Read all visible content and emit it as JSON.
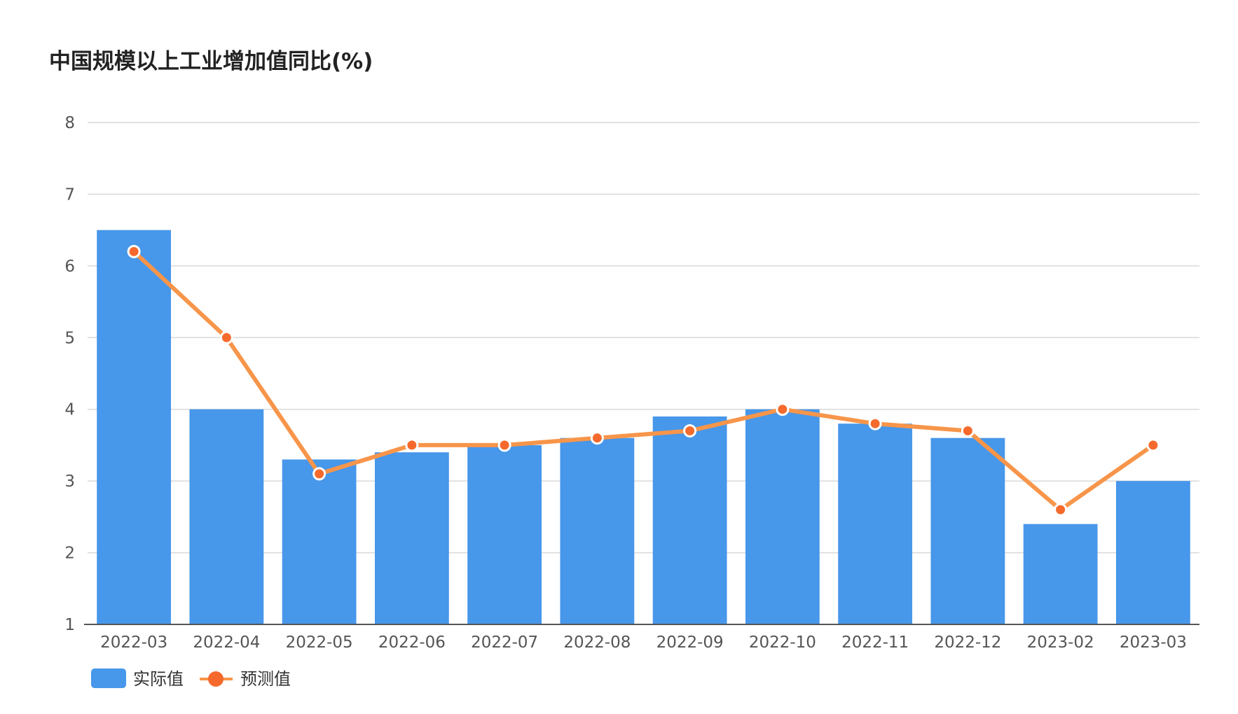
{
  "chart_data": {
    "type": "bar",
    "title": "中国规模以上工业增加值同比(%)",
    "categories": [
      "2022-03",
      "2022-04",
      "2022-05",
      "2022-06",
      "2022-07",
      "2022-08",
      "2022-09",
      "2022-10",
      "2022-11",
      "2022-12",
      "2023-02",
      "2023-03"
    ],
    "series": [
      {
        "name": "实际值",
        "type": "bar",
        "color": "#4797EA",
        "values": [
          6.5,
          4.0,
          3.3,
          3.4,
          3.5,
          3.6,
          3.9,
          4.0,
          3.8,
          3.6,
          2.4,
          3.0
        ]
      },
      {
        "name": "预测值",
        "type": "line",
        "color": "#F7954A",
        "marker_color": "#F56A2C",
        "values": [
          6.2,
          5.0,
          3.1,
          3.5,
          3.5,
          3.6,
          3.7,
          4.0,
          3.8,
          3.7,
          2.6,
          3.5
        ]
      }
    ],
    "ylim": [
      1,
      8
    ],
    "yticks": [
      1,
      2,
      3,
      4,
      5,
      6,
      7,
      8
    ],
    "grid": true,
    "legend_position": "bottom-left"
  }
}
